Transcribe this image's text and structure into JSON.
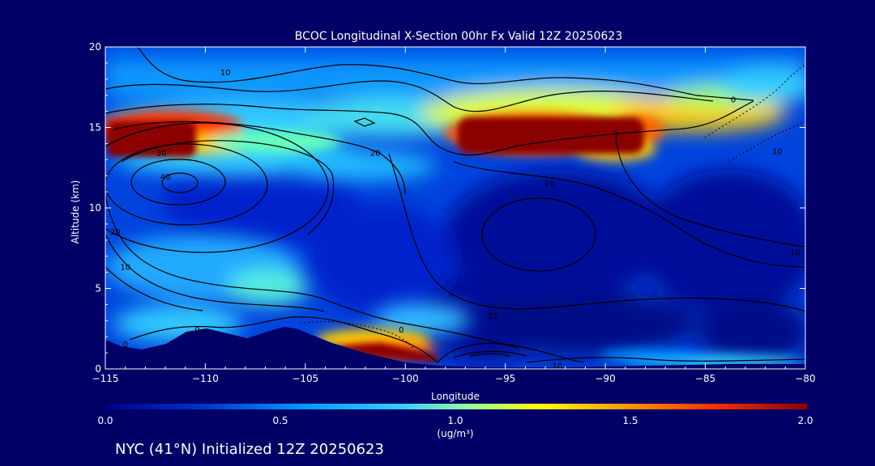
{
  "chart_data": {
    "type": "heatmap",
    "title": "BCOC Longitudinal X-Section 00hr  Fx Valid 12Z 20250623",
    "xlabel": "Longitude",
    "ylabel": "Altitude (km)",
    "xlim": [
      -115,
      -80
    ],
    "ylim": [
      0,
      20
    ],
    "x_ticks": [
      -115,
      -110,
      -105,
      -100,
      -95,
      -90,
      -85,
      -80
    ],
    "x_tick_labels": [
      "−115",
      "−110",
      "−105",
      "−100",
      "−95",
      "−90",
      "−85",
      "−80"
    ],
    "y_ticks": [
      0,
      5,
      10,
      15,
      20
    ],
    "y_tick_labels": [
      "0",
      "5",
      "10",
      "15",
      "20"
    ],
    "colorbar": {
      "min": 0.0,
      "max": 2.0,
      "ticks": [
        0.0,
        0.5,
        1.0,
        1.5,
        2.0
      ],
      "tick_labels": [
        "0.0",
        "0.5",
        "1.0",
        "1.5",
        "2.0"
      ],
      "label": "(ug/m³)",
      "colors": [
        "#000088",
        "#0033cc",
        "#0099ff",
        "#33ccff",
        "#ccff33",
        "#ffff00",
        "#ff9900",
        "#ff3300",
        "#8b0000"
      ]
    },
    "background_color": "#0044dd",
    "high_regions": [
      {
        "lon": [
          -115,
          -110
        ],
        "alt": [
          13.0,
          15.5
        ],
        "value": 2.0
      },
      {
        "lon": [
          -97,
          -88
        ],
        "alt": [
          13.3,
          15.5
        ],
        "value": 2.0
      },
      {
        "lon": [
          -103,
          -99
        ],
        "alt": [
          1.0,
          1.6
        ],
        "value": 2.0
      }
    ],
    "contour_labels": [
      {
        "text": "10",
        "lon": -109,
        "alt": 18.4
      },
      {
        "text": "30",
        "lon": -112.2,
        "alt": 13.4
      },
      {
        "text": "40",
        "lon": -112,
        "alt": 11.9
      },
      {
        "text": "20",
        "lon": -101.5,
        "alt": 13.4
      },
      {
        "text": "10",
        "lon": -92.8,
        "alt": 11.5
      },
      {
        "text": "0",
        "lon": -83.6,
        "alt": 16.7
      },
      {
        "text": "10",
        "lon": -81.4,
        "alt": 13.5
      },
      {
        "text": "20",
        "lon": -114.5,
        "alt": 8.5
      },
      {
        "text": "10",
        "lon": -114,
        "alt": 6.3
      },
      {
        "text": "10",
        "lon": -80.5,
        "alt": 7.2
      },
      {
        "text": "10",
        "lon": -95.6,
        "alt": 3.3
      },
      {
        "text": "0",
        "lon": -110.4,
        "alt": 2.4
      },
      {
        "text": "0",
        "lon": -114,
        "alt": 1.5
      },
      {
        "text": "0",
        "lon": -100.2,
        "alt": 2.4
      },
      {
        "text": "10",
        "lon": -92.4,
        "alt": 0.15
      }
    ]
  },
  "footer": {
    "text": "NYC (41°N) Initialized 12Z 20250623"
  }
}
